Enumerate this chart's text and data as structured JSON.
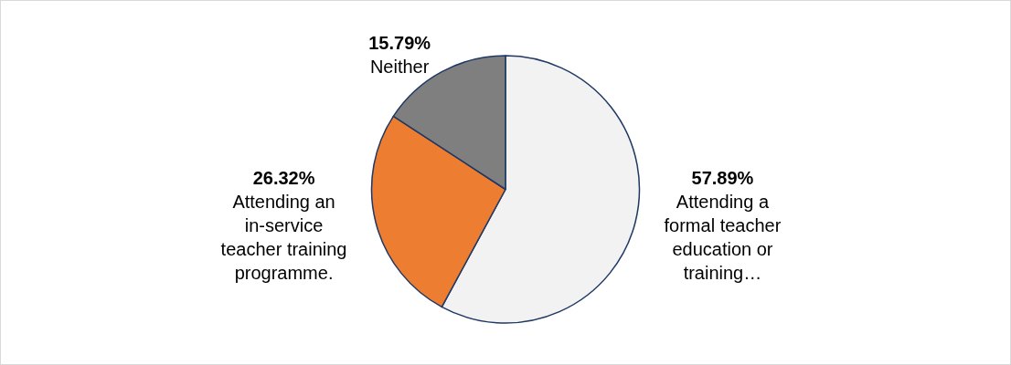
{
  "chart_data": {
    "type": "pie",
    "categories": [
      "Attending a formal teacher education or training…",
      "Attending an in-service teacher training programme.",
      "Neither"
    ],
    "values": [
      57.89,
      26.32,
      15.79
    ],
    "value_labels": [
      "57.89%",
      "26.32%",
      "15.79%"
    ],
    "colors": [
      "#f2f2f2",
      "#ed7d31",
      "#7f7f7f"
    ],
    "legend": false
  }
}
